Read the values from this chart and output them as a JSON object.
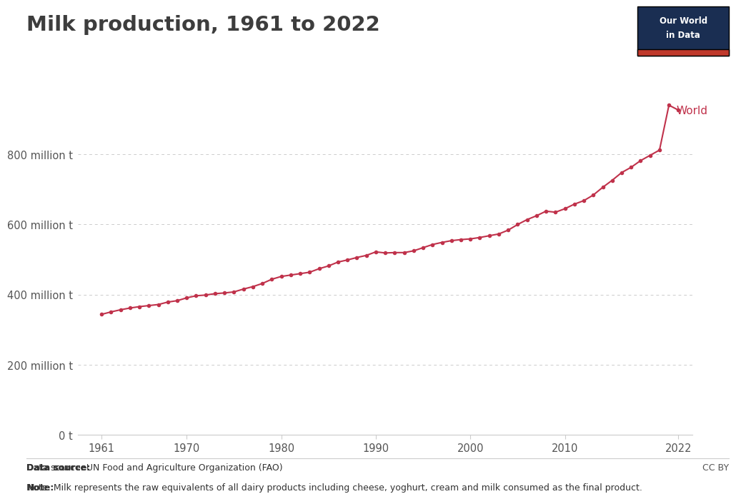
{
  "title": "Milk production, 1961 to 2022",
  "line_color": "#C0324B",
  "background_color": "#ffffff",
  "years": [
    1961,
    1962,
    1963,
    1964,
    1965,
    1966,
    1967,
    1968,
    1969,
    1970,
    1971,
    1972,
    1973,
    1974,
    1975,
    1976,
    1977,
    1978,
    1979,
    1980,
    1981,
    1982,
    1983,
    1984,
    1985,
    1986,
    1987,
    1988,
    1989,
    1990,
    1991,
    1992,
    1993,
    1994,
    1995,
    1996,
    1997,
    1998,
    1999,
    2000,
    2001,
    2002,
    2003,
    2004,
    2005,
    2006,
    2007,
    2008,
    2009,
    2010,
    2011,
    2012,
    2013,
    2014,
    2015,
    2016,
    2017,
    2018,
    2019,
    2020,
    2021,
    2022
  ],
  "values_million_t": [
    344,
    351,
    357,
    362,
    366,
    369,
    372,
    379,
    383,
    391,
    397,
    399,
    403,
    405,
    408,
    416,
    423,
    432,
    444,
    452,
    456,
    460,
    464,
    474,
    482,
    493,
    499,
    506,
    512,
    522,
    519,
    520,
    520,
    525,
    534,
    543,
    549,
    554,
    557,
    559,
    563,
    568,
    573,
    584,
    600,
    614,
    625,
    638,
    635,
    645,
    658,
    668,
    684,
    706,
    726,
    748,
    763,
    782,
    797,
    812,
    940,
    926
  ],
  "yticks": [
    0,
    200,
    400,
    600,
    800
  ],
  "ytick_labels": [
    "0 t",
    "200 million t",
    "400 million t",
    "600 million t",
    "800 million t"
  ],
  "xticks": [
    1961,
    1970,
    1980,
    1990,
    2000,
    2010,
    2022
  ],
  "grid_color": "#cccccc",
  "label_color": "#555555",
  "title_color": "#3d3d3d",
  "datasource_bold": "Data source:",
  "datasource_rest": " UN Food and Agriculture Organization (FAO)",
  "note_bold": "Note:",
  "note_rest": " Milk represents the raw equivalents of all dairy products including cheese, yoghurt, cream and milk consumed as the final product.",
  "footnote_ccby": "CC BY",
  "owid_box_color": "#1a2e52",
  "owid_red_color": "#c0392b",
  "series_label": "World"
}
